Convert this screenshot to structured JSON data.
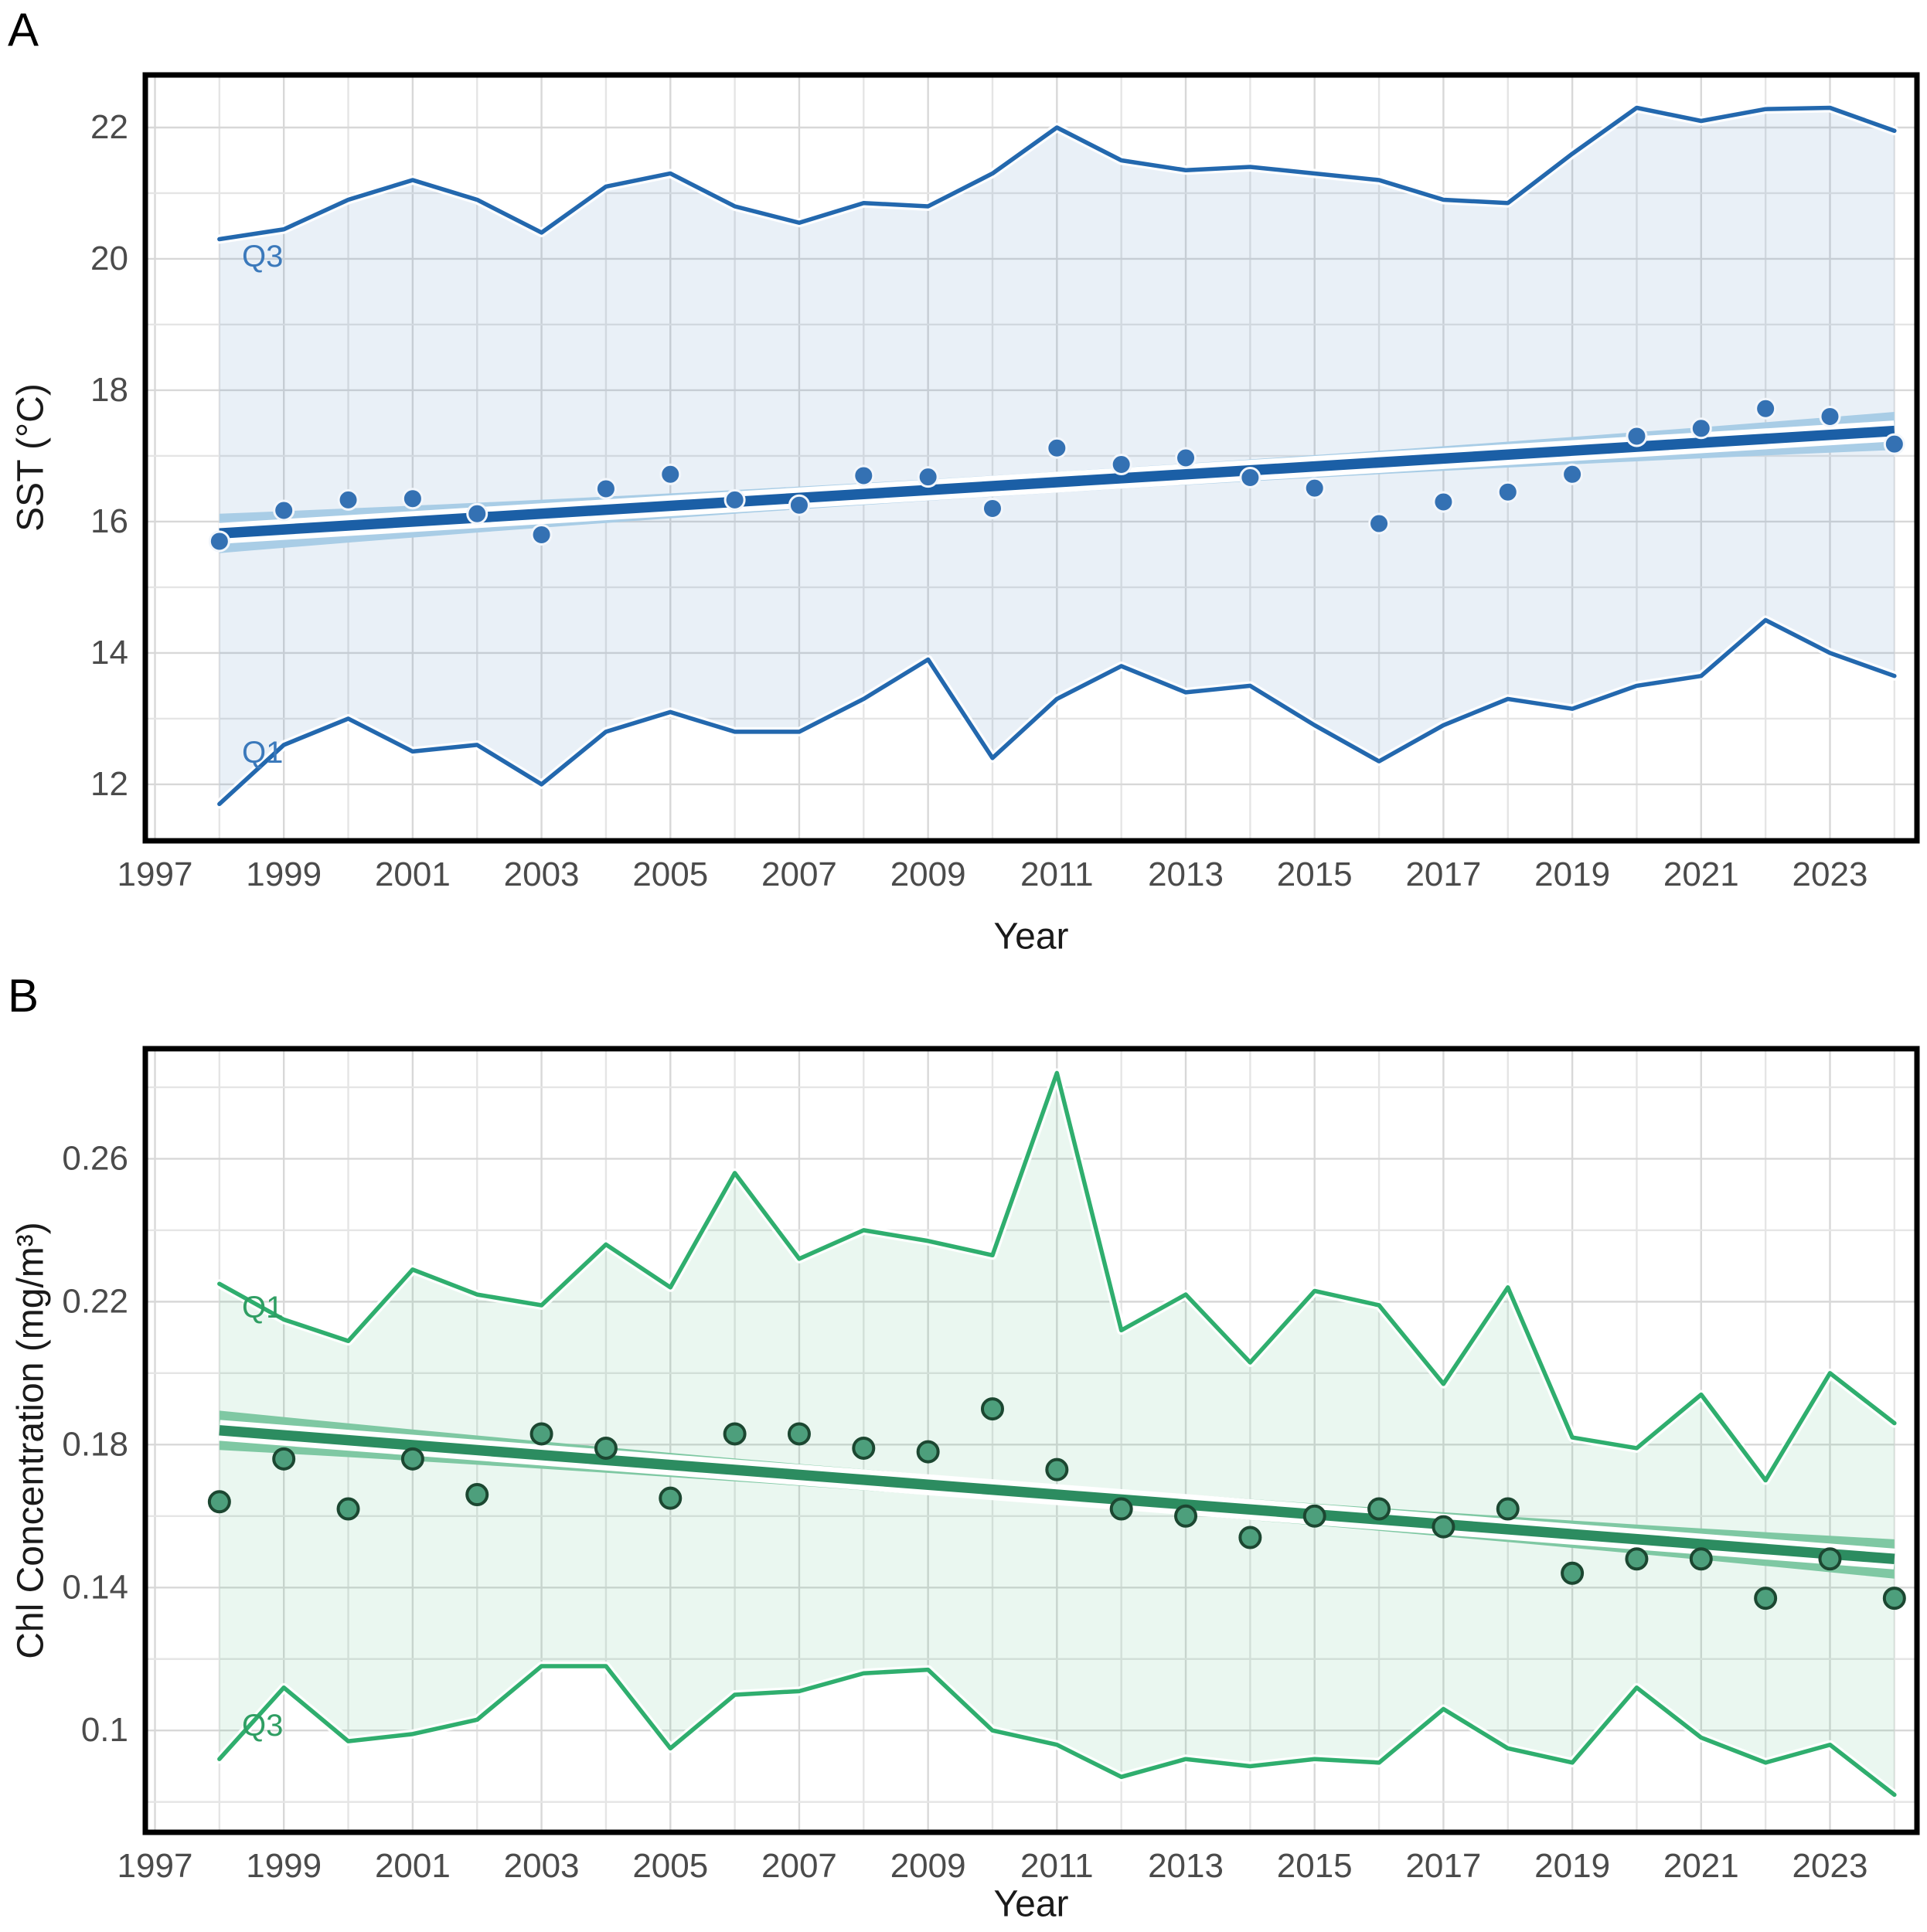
{
  "page": {
    "background": "#ffffff"
  },
  "chart_data": [
    {
      "panel_label": "A",
      "type": "line",
      "title": "",
      "xlabel": "Year",
      "ylabel": "SST (°C)",
      "legend": "none",
      "grid": true,
      "xlim": [
        1996.85,
        2024.35
      ],
      "ylim": [
        11.14,
        22.8
      ],
      "x_tick_values": [
        1997,
        1999,
        2001,
        2003,
        2005,
        2007,
        2009,
        2011,
        2013,
        2015,
        2017,
        2019,
        2021,
        2023
      ],
      "x_tick_labels": [
        "1997",
        "1999",
        "2001",
        "2003",
        "2005",
        "2007",
        "2009",
        "2011",
        "2013",
        "2015",
        "2017",
        "2019",
        "2021",
        "2023"
      ],
      "y_tick_values": [
        12,
        14,
        16,
        18,
        20,
        22
      ],
      "y_tick_labels": [
        "12",
        "14",
        "16",
        "18",
        "20",
        "22"
      ],
      "grid_step_x": 1,
      "grid_step_y": 1,
      "years": [
        1998,
        1999,
        2000,
        2001,
        2002,
        2003,
        2004,
        2005,
        2006,
        2007,
        2008,
        2009,
        2010,
        2011,
        2012,
        2013,
        2014,
        2015,
        2016,
        2017,
        2018,
        2019,
        2020,
        2021,
        2022,
        2023,
        2024
      ],
      "series": [
        {
          "name": "annual_mean_sst",
          "role": "points",
          "values": [
            15.7,
            16.17,
            16.33,
            16.35,
            16.12,
            15.8,
            16.5,
            16.72,
            16.33,
            16.25,
            16.7,
            16.68,
            16.2,
            17.12,
            16.87,
            16.97,
            16.67,
            16.51,
            15.97,
            16.3,
            16.45,
            16.72,
            17.3,
            17.42,
            17.72,
            17.6,
            17.18
          ]
        },
        {
          "name": "Q3",
          "role": "band_upper",
          "values": [
            20.3,
            20.45,
            20.9,
            21.2,
            20.9,
            20.4,
            21.1,
            21.3,
            20.8,
            20.55,
            20.85,
            20.8,
            21.3,
            22.0,
            21.5,
            21.35,
            21.4,
            21.3,
            21.2,
            20.9,
            20.85,
            21.6,
            22.3,
            22.1,
            22.28,
            22.3,
            21.95
          ]
        },
        {
          "name": "Q1",
          "role": "band_lower",
          "values": [
            11.7,
            12.6,
            13.0,
            12.5,
            12.6,
            12.0,
            12.8,
            13.1,
            12.8,
            12.8,
            13.3,
            13.9,
            12.4,
            13.3,
            13.8,
            13.4,
            13.5,
            12.9,
            12.35,
            12.9,
            13.3,
            13.15,
            13.5,
            13.65,
            14.5,
            14.0,
            13.65
          ]
        }
      ],
      "trend": {
        "start_year": 1998,
        "end_year": 2024,
        "start_value": 15.82,
        "end_value": 17.38
      },
      "ci_halfwidth": {
        "start": 0.3,
        "mid": 0.16,
        "end": 0.29
      },
      "annotations": [
        {
          "text": "Q3",
          "year": 1998.35,
          "value": 19.88
        },
        {
          "text": "Q1",
          "year": 1998.35,
          "value": 12.33
        }
      ],
      "colors": {
        "trend": "#1b5fa6",
        "ci_band": "#a9cde6",
        "envelope_line": "#2368ae",
        "envelope_fill": "rgba(37,105,176,0.10)",
        "point_fill": "#3471b3",
        "point_stroke": "#f2f6fb",
        "annotation": "#3b79bb",
        "grid_minor": "#e5e5e5",
        "grid_major": "#d8d8d8",
        "frame": "#000000",
        "tick_text": "#4b4b4b"
      }
    },
    {
      "panel_label": "B",
      "type": "line",
      "title": "",
      "xlabel": "Year",
      "ylabel": "Chl Concentration (mg/m³)",
      "legend": "none",
      "grid": true,
      "xlim": [
        1996.85,
        2024.35
      ],
      "ylim": [
        0.0715,
        0.2908
      ],
      "x_tick_values": [
        1997,
        1999,
        2001,
        2003,
        2005,
        2007,
        2009,
        2011,
        2013,
        2015,
        2017,
        2019,
        2021,
        2023
      ],
      "x_tick_labels": [
        "1997",
        "1999",
        "2001",
        "2003",
        "2005",
        "2007",
        "2009",
        "2011",
        "2013",
        "2015",
        "2017",
        "2019",
        "2021",
        "2023"
      ],
      "y_tick_values": [
        0.1,
        0.14,
        0.18,
        0.22,
        0.26
      ],
      "y_tick_labels": [
        "0.1",
        "0.14",
        "0.18",
        "0.22",
        "0.26"
      ],
      "grid_step_x": 1,
      "grid_step_y": 0.02,
      "years": [
        1998,
        1999,
        2000,
        2001,
        2002,
        2003,
        2004,
        2005,
        2006,
        2007,
        2008,
        2009,
        2010,
        2011,
        2012,
        2013,
        2014,
        2015,
        2016,
        2017,
        2018,
        2019,
        2020,
        2021,
        2022,
        2023,
        2024
      ],
      "series": [
        {
          "name": "annual_mean_chl",
          "role": "points",
          "values": [
            0.164,
            0.176,
            0.162,
            0.176,
            0.166,
            0.183,
            0.179,
            0.165,
            0.183,
            0.183,
            0.179,
            0.178,
            0.19,
            0.173,
            0.162,
            0.16,
            0.154,
            0.16,
            0.162,
            0.157,
            0.162,
            0.144,
            0.148,
            0.148,
            0.137,
            0.148,
            0.137
          ]
        },
        {
          "name": "Q1",
          "role": "band_upper",
          "values": [
            0.225,
            0.215,
            0.209,
            0.229,
            0.222,
            0.219,
            0.236,
            0.224,
            0.256,
            0.232,
            0.24,
            0.237,
            0.233,
            0.284,
            0.212,
            0.222,
            0.203,
            0.223,
            0.219,
            0.197,
            0.224,
            0.182,
            0.179,
            0.194,
            0.17,
            0.2,
            0.186
          ]
        },
        {
          "name": "Q3",
          "role": "band_lower",
          "values": [
            0.092,
            0.112,
            0.097,
            0.099,
            0.103,
            0.118,
            0.118,
            0.095,
            0.11,
            0.111,
            0.116,
            0.117,
            0.1,
            0.096,
            0.087,
            0.092,
            0.09,
            0.092,
            0.091,
            0.106,
            0.095,
            0.091,
            0.112,
            0.098,
            0.091,
            0.096,
            0.082
          ]
        }
      ],
      "trend": {
        "start_year": 1998,
        "end_year": 2024,
        "start_value": 0.184,
        "end_value": 0.148
      },
      "ci_halfwidth": {
        "start": 0.0055,
        "mid": 0.0028,
        "end": 0.0055
      },
      "annotations": [
        {
          "text": "Q1",
          "year": 1998.35,
          "value": 0.2155
        },
        {
          "text": "Q3",
          "year": 1998.35,
          "value": 0.0985
        }
      ],
      "colors": {
        "trend": "#2c8c60",
        "ci_band": "#7fc8a3",
        "envelope_line": "#2fae6e",
        "envelope_fill": "rgba(47,174,110,0.10)",
        "point_fill": "#4d9f7c",
        "point_stroke": "#1c4731",
        "annotation": "#2f9e63",
        "grid_minor": "#e5e5e5",
        "grid_major": "#d8d8d8",
        "frame": "#000000",
        "tick_text": "#4b4b4b"
      }
    }
  ]
}
